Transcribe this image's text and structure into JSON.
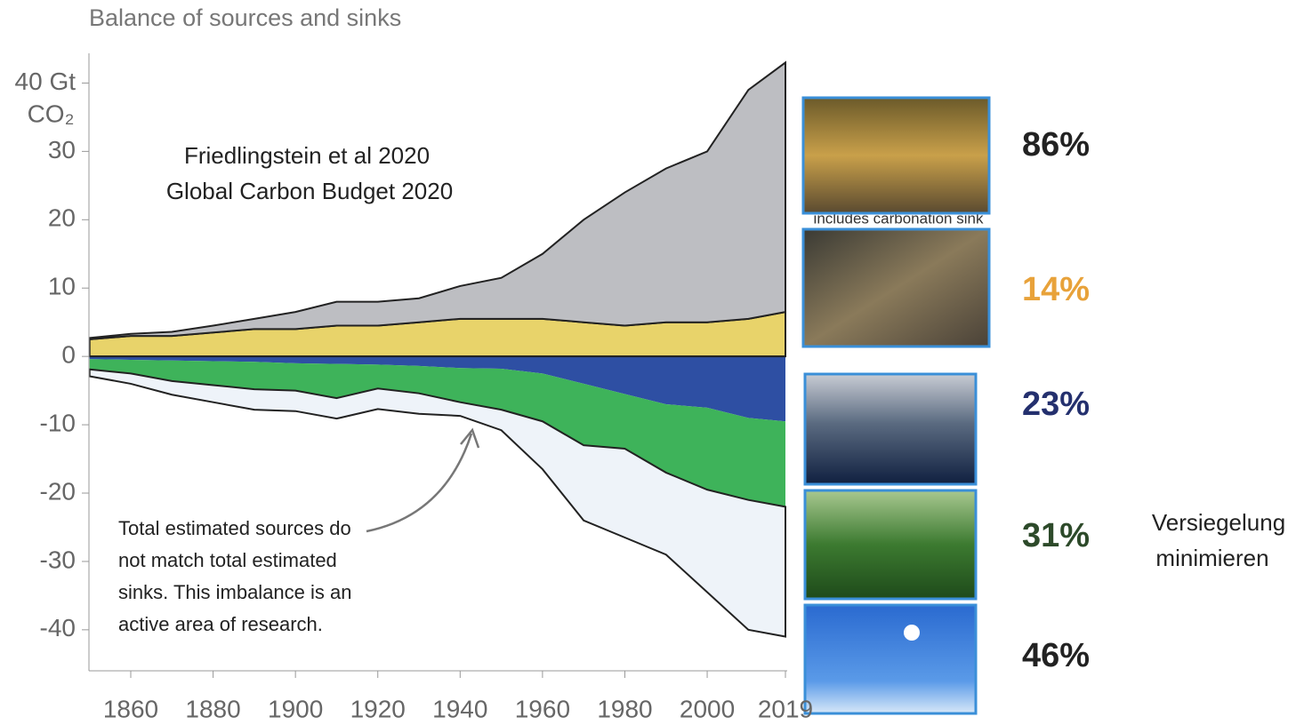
{
  "chart_data": {
    "type": "stacked-area",
    "title": "Balance of sources and sinks",
    "ylabel": "CO₂",
    "x": [
      1850,
      1860,
      1870,
      1880,
      1890,
      1900,
      1910,
      1920,
      1930,
      1940,
      1950,
      1960,
      1970,
      1980,
      1990,
      2000,
      2010,
      2019
    ],
    "series": [
      {
        "color": "#e8d36a",
        "outline": true,
        "values": [
          2.5,
          3,
          3,
          3.5,
          4,
          4,
          4.5,
          4.5,
          5,
          5.5,
          5.5,
          5.5,
          5,
          4.5,
          5,
          5,
          5.5,
          6.5
        ]
      },
      {
        "color": "#bdbec2",
        "outline": true,
        "values": [
          0.2,
          0.3,
          0.6,
          1,
          1.5,
          2.5,
          3.5,
          3.5,
          3.5,
          4.8,
          6,
          9.5,
          15,
          19.5,
          22.5,
          25,
          33.5,
          36.5
        ]
      },
      {
        "color": "#2e4fa3",
        "outline": false,
        "values": [
          -0.4,
          -0.5,
          -0.6,
          -0.7,
          -0.8,
          -1,
          -1.1,
          -1.2,
          -1.4,
          -1.7,
          -1.8,
          -2.5,
          -4,
          -5.5,
          -7,
          -7.5,
          -9,
          -9.5
        ]
      },
      {
        "color": "#3eb35a",
        "outline": false,
        "values": [
          -1.5,
          -2,
          -3,
          -3.5,
          -4,
          -4,
          -5,
          -3.5,
          -4,
          -5,
          -6,
          -7,
          -9,
          -8,
          -10,
          -12,
          -12,
          -12.5
        ]
      },
      {
        "color": "#eef3f9",
        "outline": true,
        "values": [
          -1,
          -1.5,
          -2,
          -2.5,
          -3,
          -3,
          -3,
          -3,
          -3,
          -2,
          -3,
          -7,
          -11,
          -13,
          -12,
          -15,
          -19,
          -19
        ]
      }
    ],
    "xlim": [
      1850,
      2019
    ],
    "xticks": [
      1860,
      1880,
      1900,
      1920,
      1940,
      1960,
      1980,
      2000,
      2019
    ],
    "ylim": [
      -46,
      45
    ],
    "yticks": [
      -40,
      -30,
      -20,
      -10,
      0,
      10,
      20,
      30,
      {
        "value": 40,
        "label": "40 Gt"
      }
    ],
    "source": [
      "Friedlingstein et al 2020",
      "Global Carbon Budget 2020"
    ],
    "annotation": [
      "Total estimated sources do",
      "not match total estimated",
      "sinks. This imbalance is an",
      "active area of research."
    ]
  },
  "side_panels": [
    {
      "label": "86%",
      "color": "#222222"
    },
    {
      "label": "14%",
      "color": "#e8a23a"
    },
    {
      "label": "23%",
      "color": "#24306e"
    },
    {
      "label": "31%",
      "color": "#2d4a2a"
    },
    {
      "label": "46%",
      "color": "#222222"
    }
  ],
  "panel_caption": "includes carbonation sink",
  "note": [
    "Versiegelung",
    "minimieren"
  ]
}
